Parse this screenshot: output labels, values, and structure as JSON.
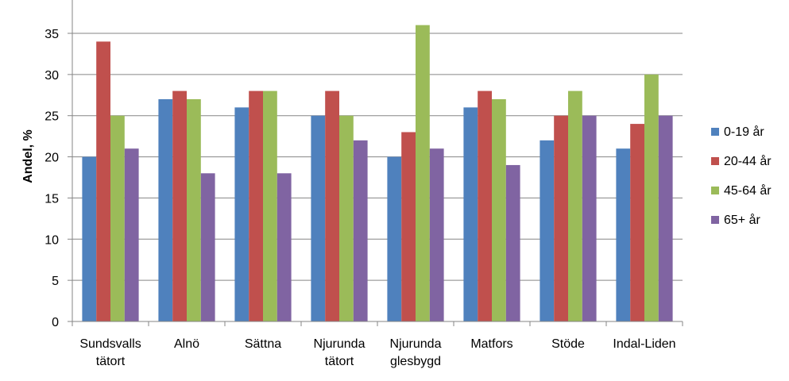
{
  "chart_data": {
    "type": "bar",
    "title": "",
    "xlabel": "",
    "ylabel": "Andel, %",
    "ylim": [
      0,
      35
    ],
    "ymax_axis": 40,
    "ytick_step": 5,
    "grid": true,
    "legend_position": "right",
    "categories": [
      [
        "Sundsvalls",
        "tätort"
      ],
      [
        "Alnö"
      ],
      [
        "Sättna"
      ],
      [
        "Njurunda",
        "tätort"
      ],
      [
        "Njurunda",
        "glesbygd"
      ],
      [
        "Matfors"
      ],
      [
        "Stöde"
      ],
      [
        "Indal-Liden"
      ]
    ],
    "series": [
      {
        "name": "0-19 år",
        "color": "#4F81BD",
        "values": [
          20,
          27,
          26,
          25,
          20,
          26,
          22,
          21
        ]
      },
      {
        "name": "20-44 år",
        "color": "#C0504D",
        "values": [
          34,
          28,
          28,
          28,
          23,
          28,
          25,
          24
        ]
      },
      {
        "name": "45-64 år",
        "color": "#9BBB59",
        "values": [
          25,
          27,
          28,
          25,
          36,
          27,
          28,
          30
        ]
      },
      {
        "name": "65+ år",
        "color": "#8064A2",
        "values": [
          21,
          18,
          18,
          22,
          21,
          19,
          25,
          25
        ]
      }
    ]
  }
}
